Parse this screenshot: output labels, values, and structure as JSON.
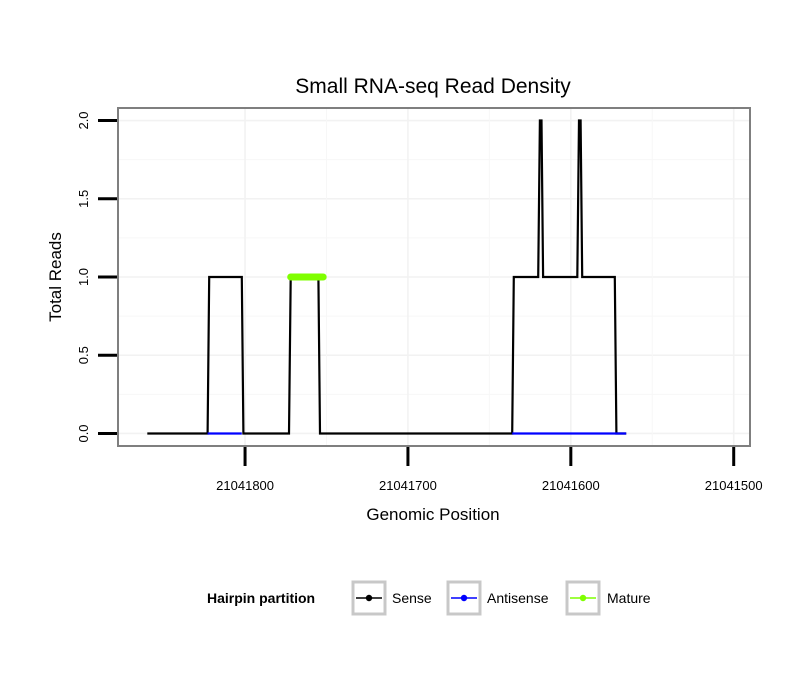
{
  "chart_data": {
    "type": "line",
    "title": "Small RNA-seq Read Density",
    "xlabel": "Genomic Position",
    "ylabel": "Total Reads",
    "x_reversed": true,
    "xlim": [
      21041878,
      21041490
    ],
    "ylim": [
      -0.08,
      2.08
    ],
    "x_ticks": [
      21041800,
      21041700,
      21041600,
      21041500
    ],
    "x_tick_labels": [
      "21041800",
      "21041700",
      "21041600",
      "21041500"
    ],
    "y_ticks": [
      0.0,
      0.5,
      1.0,
      1.5,
      2.0
    ],
    "y_tick_labels": [
      "0.0",
      "0.5",
      "1.0",
      "1.5",
      "2.0"
    ],
    "grid": true,
    "legend": {
      "title": "Hairpin partition",
      "position": "bottom",
      "entries": [
        "Sense",
        "Antisense",
        "Mature"
      ]
    },
    "series": [
      {
        "name": "Sense",
        "color": "#000000",
        "x": [
          21041860,
          21041823,
          21041822,
          21041802,
          21041801,
          21041773,
          21041772,
          21041755,
          21041754,
          21041636,
          21041635,
          21041620,
          21041619,
          21041618,
          21041617,
          21041616,
          21041615,
          21041596,
          21041595,
          21041594,
          21041593,
          21041592,
          21041591,
          21041573,
          21041572,
          21041566
        ],
        "values": [
          0,
          0,
          1,
          1,
          0,
          0,
          1,
          1,
          0,
          0,
          1,
          1,
          2,
          2,
          1,
          1,
          1,
          1,
          2,
          2,
          1,
          1,
          1,
          1,
          0,
          0
        ]
      },
      {
        "name": "Antisense",
        "color": "#0000ff",
        "x": [
          21041823,
          21041802,
          21041636,
          21041566
        ],
        "values": [
          0,
          0,
          0,
          0
        ],
        "segments": [
          [
            0,
            1
          ],
          [
            2,
            3
          ]
        ]
      },
      {
        "name": "Mature",
        "color": "#7fff00",
        "x": [
          21041772,
          21041752
        ],
        "values": [
          1,
          1
        ]
      }
    ]
  }
}
